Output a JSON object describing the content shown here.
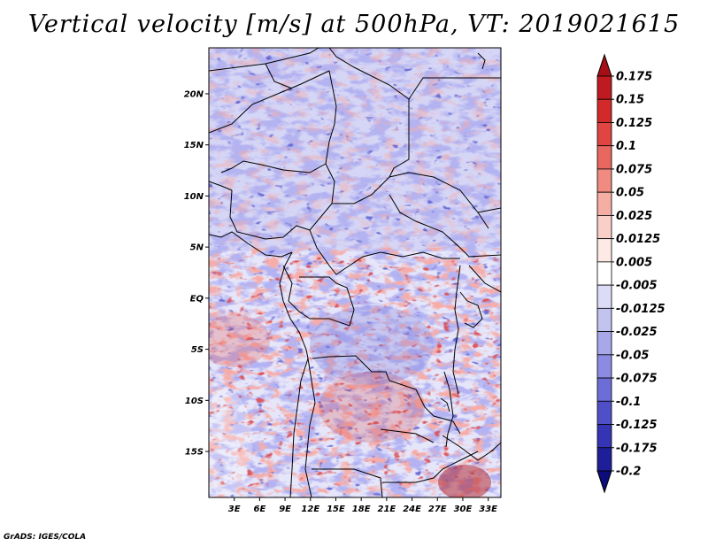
{
  "title": "Vertical velocity [m/s] at 500hPa, VT: 2019021615",
  "footer": "GrADS: IGES/COLA",
  "lat_ticks": [
    "20N",
    "15N",
    "10N",
    "5N",
    "EQ",
    "5S",
    "10S",
    "15S"
  ],
  "lon_ticks": [
    "3E",
    "6E",
    "9E",
    "12E",
    "15E",
    "18E",
    "21E",
    "24E",
    "27E",
    "30E",
    "33E"
  ],
  "colorbar": {
    "labels": [
      "0.175",
      "0.15",
      "0.125",
      "0.1",
      "0.075",
      "0.05",
      "0.025",
      "0.0125",
      "0.005",
      "-0.005",
      "-0.0125",
      "-0.025",
      "-0.05",
      "-0.075",
      "-0.1",
      "-0.125",
      "-0.175",
      "-0.2"
    ],
    "colors": [
      "#a50f15",
      "#be1a1f",
      "#d22a2a",
      "#e04542",
      "#e8685f",
      "#ef8b80",
      "#f5aea4",
      "#f9cfc8",
      "#fdeae6",
      "#ffffff",
      "#dcdcf6",
      "#c3c3f0",
      "#a7a7ea",
      "#8b8be2",
      "#6d6dd8",
      "#4f4fc8",
      "#3434b4",
      "#1e1e98",
      "#0c0c7a"
    ]
  },
  "map": {
    "extent": {
      "lon": [
        0,
        34.5
      ],
      "lat": [
        -19.5,
        24.5
      ]
    }
  }
}
